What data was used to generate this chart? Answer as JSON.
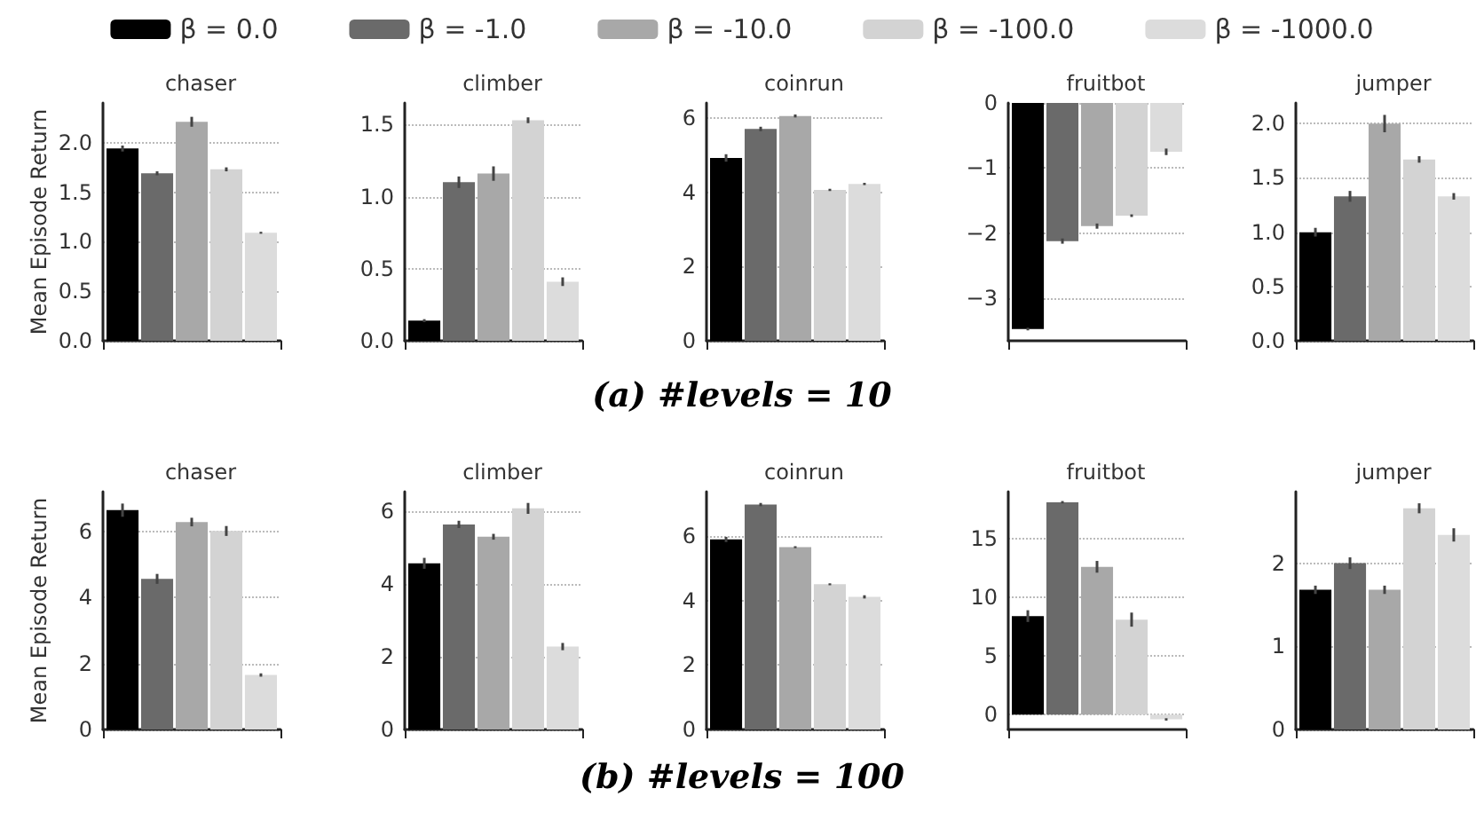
{
  "chart_data": [
    {
      "type": "bar",
      "title": "chaser",
      "ylabel": "Mean Episode Return",
      "categories": [
        null
      ],
      "legend": "top",
      "grid": "y",
      "tick_labels": "y",
      "ylim": [
        0,
        2.4
      ],
      "yticks": [
        {
          "value": 0,
          "label": "0.0"
        },
        {
          "value": 0.5,
          "label": "0.5"
        },
        {
          "value": 1,
          "label": "1.0"
        },
        {
          "value": 1.5,
          "label": "1.5"
        },
        {
          "value": 2,
          "label": "2.0"
        }
      ],
      "series": [
        {
          "name": "β = 0.0",
          "color": "#000000",
          "values": [
            1.94
          ],
          "errors": [
            0.03
          ]
        },
        {
          "name": "β = -1.0",
          "color": "#6a6a6a",
          "values": [
            1.69
          ],
          "errors": [
            0.02
          ]
        },
        {
          "name": "β = -10.0",
          "color": "#a8a8a8",
          "values": [
            2.21
          ],
          "errors": [
            0.05
          ]
        },
        {
          "name": "β = -100.0",
          "color": "#d3d3d3",
          "values": [
            1.73
          ],
          "errors": [
            0.02
          ]
        },
        {
          "name": "β = -1000.0",
          "color": "#dcdcdc",
          "values": [
            1.09
          ],
          "errors": [
            0.01
          ]
        }
      ]
    },
    {
      "type": "bar",
      "title": "climber",
      "categories": [
        null
      ],
      "grid": "y",
      "tick_labels": "y",
      "ylim": [
        0,
        1.65
      ],
      "yticks": [
        {
          "value": 0,
          "label": "0.0"
        },
        {
          "value": 0.5,
          "label": "0.5"
        },
        {
          "value": 1,
          "label": "1.0"
        },
        {
          "value": 1.5,
          "label": "1.5"
        }
      ],
      "series": [
        {
          "color": "#000000",
          "values": [
            0.14
          ],
          "errors": [
            0.01
          ]
        },
        {
          "color": "#6a6a6a",
          "values": [
            1.1
          ],
          "errors": [
            0.04
          ]
        },
        {
          "color": "#a8a8a8",
          "values": [
            1.16
          ],
          "errors": [
            0.05
          ]
        },
        {
          "color": "#d3d3d3",
          "values": [
            1.53
          ],
          "errors": [
            0.02
          ]
        },
        {
          "color": "#dcdcdc",
          "values": [
            0.41
          ],
          "errors": [
            0.03
          ]
        }
      ]
    },
    {
      "type": "bar",
      "title": "coinrun",
      "categories": [
        null
      ],
      "grid": "y",
      "tick_labels": "y",
      "ylim": [
        0,
        6.4
      ],
      "yticks": [
        0,
        2,
        4,
        6
      ],
      "annotations": [
        "(a) #levels = 10"
      ],
      "series": [
        {
          "color": "#000000",
          "values": [
            4.92
          ],
          "errors": [
            0.1
          ]
        },
        {
          "color": "#6a6a6a",
          "values": [
            5.7
          ],
          "errors": [
            0.06
          ]
        },
        {
          "color": "#a8a8a8",
          "values": [
            6.05
          ],
          "errors": [
            0.04
          ]
        },
        {
          "color": "#d3d3d3",
          "values": [
            4.06
          ],
          "errors": [
            0.03
          ]
        },
        {
          "color": "#dcdcdc",
          "values": [
            4.22
          ],
          "errors": [
            0.03
          ]
        }
      ]
    },
    {
      "type": "bar",
      "title": "fruitbot",
      "categories": [
        null
      ],
      "grid": "y",
      "tick_labels": "y",
      "ylim": [
        -3.65,
        0
      ],
      "yticks": [
        {
          "value": -3,
          "label": "−3"
        },
        {
          "value": -2,
          "label": "−2"
        },
        {
          "value": -1,
          "label": "−1"
        },
        0
      ],
      "series": [
        {
          "color": "#000000",
          "values": [
            -3.47
          ],
          "errors": [
            0.02
          ]
        },
        {
          "color": "#6a6a6a",
          "values": [
            -2.12
          ],
          "errors": [
            0.04
          ]
        },
        {
          "color": "#a8a8a8",
          "values": [
            -1.89
          ],
          "errors": [
            0.04
          ]
        },
        {
          "color": "#d3d3d3",
          "values": [
            -1.73
          ],
          "errors": [
            0.02
          ]
        },
        {
          "color": "#dcdcdc",
          "values": [
            -0.75
          ],
          "errors": [
            0.05
          ]
        }
      ]
    },
    {
      "type": "bar",
      "title": "jumper",
      "categories": [
        null
      ],
      "grid": "y",
      "tick_labels": "y",
      "ylim": [
        0,
        2.19
      ],
      "yticks": [
        {
          "value": 0,
          "label": "0.0"
        },
        {
          "value": 0.5,
          "label": "0.5"
        },
        {
          "value": 1,
          "label": "1.0"
        },
        {
          "value": 1.5,
          "label": "1.5"
        },
        {
          "value": 2,
          "label": "2.0"
        }
      ],
      "series": [
        {
          "color": "#000000",
          "values": [
            1.0
          ],
          "errors": [
            0.04
          ]
        },
        {
          "color": "#6a6a6a",
          "values": [
            1.33
          ],
          "errors": [
            0.05
          ]
        },
        {
          "color": "#a8a8a8",
          "values": [
            2.0
          ],
          "errors": [
            0.08
          ]
        },
        {
          "color": "#d3d3d3",
          "values": [
            1.67
          ],
          "errors": [
            0.03
          ]
        },
        {
          "color": "#dcdcdc",
          "values": [
            1.33
          ],
          "errors": [
            0.03
          ]
        }
      ]
    },
    {
      "type": "bar",
      "title": "chaser",
      "ylabel": "Mean Episode Return",
      "categories": [
        null
      ],
      "grid": "y",
      "tick_labels": "y",
      "ylim": [
        0,
        7.2
      ],
      "yticks": [
        0,
        2,
        4,
        6
      ],
      "series": [
        {
          "color": "#000000",
          "values": [
            6.64
          ],
          "errors": [
            0.2
          ]
        },
        {
          "color": "#6a6a6a",
          "values": [
            4.56
          ],
          "errors": [
            0.15
          ]
        },
        {
          "color": "#a8a8a8",
          "values": [
            6.28
          ],
          "errors": [
            0.13
          ]
        },
        {
          "color": "#d3d3d3",
          "values": [
            6.01
          ],
          "errors": [
            0.15
          ]
        },
        {
          "color": "#dcdcdc",
          "values": [
            1.65
          ],
          "errors": [
            0.05
          ]
        }
      ]
    },
    {
      "type": "bar",
      "title": "climber",
      "categories": [
        null
      ],
      "grid": "y",
      "tick_labels": "y",
      "ylim": [
        0,
        6.54
      ],
      "yticks": [
        0,
        2,
        4,
        6
      ],
      "series": [
        {
          "color": "#000000",
          "values": [
            4.57
          ],
          "errors": [
            0.15
          ]
        },
        {
          "color": "#6a6a6a",
          "values": [
            5.64
          ],
          "errors": [
            0.1
          ]
        },
        {
          "color": "#a8a8a8",
          "values": [
            5.3
          ],
          "errors": [
            0.08
          ]
        },
        {
          "color": "#d3d3d3",
          "values": [
            6.08
          ],
          "errors": [
            0.15
          ]
        },
        {
          "color": "#dcdcdc",
          "values": [
            2.28
          ],
          "errors": [
            0.1
          ]
        }
      ]
    },
    {
      "type": "bar",
      "title": "coinrun",
      "categories": [
        null
      ],
      "grid": "y",
      "tick_labels": "y",
      "ylim": [
        0,
        7.37
      ],
      "yticks": [
        0,
        2,
        4,
        6
      ],
      "annotations": [
        "(b) #levels = 100"
      ],
      "series": [
        {
          "color": "#000000",
          "values": [
            5.89
          ],
          "errors": [
            0.08
          ]
        },
        {
          "color": "#6a6a6a",
          "values": [
            6.97
          ],
          "errors": [
            0.05
          ]
        },
        {
          "color": "#a8a8a8",
          "values": [
            5.65
          ],
          "errors": [
            0.03
          ]
        },
        {
          "color": "#d3d3d3",
          "values": [
            4.5
          ],
          "errors": [
            0.03
          ]
        },
        {
          "color": "#dcdcdc",
          "values": [
            4.11
          ],
          "errors": [
            0.05
          ]
        }
      ]
    },
    {
      "type": "bar",
      "title": "fruitbot",
      "categories": [
        null
      ],
      "grid": "y",
      "tick_labels": "y",
      "ylim": [
        -1.26,
        19
      ],
      "yticks": [
        0,
        5,
        10,
        15
      ],
      "series": [
        {
          "color": "#000000",
          "values": [
            8.4
          ],
          "errors": [
            0.5
          ]
        },
        {
          "color": "#6a6a6a",
          "values": [
            18.1
          ],
          "errors": [
            0.1
          ]
        },
        {
          "color": "#a8a8a8",
          "values": [
            12.6
          ],
          "errors": [
            0.5
          ]
        },
        {
          "color": "#d3d3d3",
          "values": [
            8.1
          ],
          "errors": [
            0.6
          ]
        },
        {
          "color": "#dcdcdc",
          "values": [
            -0.4
          ],
          "errors": [
            0.1
          ]
        }
      ]
    },
    {
      "type": "bar",
      "title": "jumper",
      "categories": [
        null
      ],
      "grid": "y",
      "tick_labels": "y",
      "ylim": [
        0,
        2.86
      ],
      "yticks": [
        0,
        1,
        2
      ],
      "series": [
        {
          "color": "#000000",
          "values": [
            1.68
          ],
          "errors": [
            0.05
          ]
        },
        {
          "color": "#6a6a6a",
          "values": [
            2.0
          ],
          "errors": [
            0.07
          ]
        },
        {
          "color": "#a8a8a8",
          "values": [
            1.68
          ],
          "errors": [
            0.05
          ]
        },
        {
          "color": "#d3d3d3",
          "values": [
            2.66
          ],
          "errors": [
            0.06
          ]
        },
        {
          "color": "#dcdcdc",
          "values": [
            2.34
          ],
          "errors": [
            0.08
          ]
        }
      ]
    }
  ]
}
